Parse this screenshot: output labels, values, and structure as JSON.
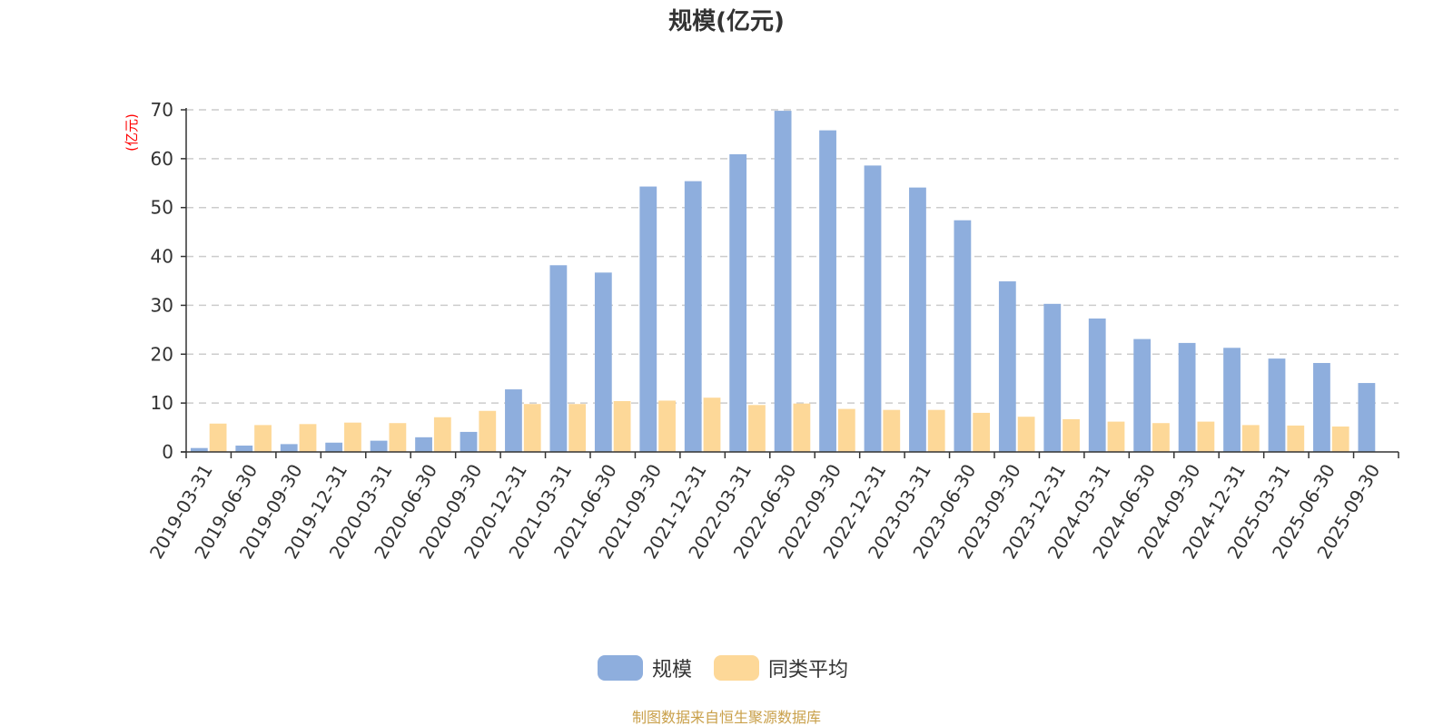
{
  "chart_data": {
    "type": "bar",
    "title": "规模(亿元)",
    "ylabel": "(亿元)",
    "ylim": [
      0,
      70
    ],
    "yticks": [
      0,
      10,
      20,
      30,
      40,
      50,
      60,
      70
    ],
    "grid": true,
    "legend_position": "bottom-center",
    "categories": [
      "2019-03-31",
      "2019-06-30",
      "2019-09-30",
      "2019-12-31",
      "2020-03-31",
      "2020-06-30",
      "2020-09-30",
      "2020-12-31",
      "2021-03-31",
      "2021-06-30",
      "2021-09-30",
      "2021-12-31",
      "2022-03-31",
      "2022-06-30",
      "2022-09-30",
      "2022-12-31",
      "2023-03-31",
      "2023-06-30",
      "2023-09-30",
      "2023-12-31",
      "2024-03-31",
      "2024-06-30",
      "2024-09-30",
      "2024-12-31",
      "2025-03-31",
      "2025-06-30",
      "2025-09-30"
    ],
    "series": [
      {
        "name": "规模",
        "color": "#8eaedd",
        "values": [
          0.8,
          1.3,
          1.6,
          1.9,
          2.3,
          3.0,
          4.1,
          12.8,
          38.2,
          36.7,
          54.3,
          55.4,
          60.9,
          69.8,
          65.8,
          58.6,
          54.1,
          47.4,
          34.9,
          30.3,
          27.3,
          23.1,
          22.3,
          21.3,
          19.1,
          18.2,
          14.1
        ]
      },
      {
        "name": "同类平均",
        "color": "#fdd898",
        "values": [
          5.8,
          5.5,
          5.7,
          6.0,
          5.9,
          7.1,
          8.4,
          9.8,
          9.8,
          10.4,
          10.5,
          11.1,
          9.6,
          9.9,
          8.8,
          8.6,
          8.6,
          8.0,
          7.2,
          6.7,
          6.2,
          5.9,
          6.2,
          5.5,
          5.4,
          5.2,
          null
        ]
      }
    ]
  },
  "colors": {
    "axis": "#333333",
    "grid": "#cccccc",
    "unit_label": "#ff0000",
    "source": "#c9a04a"
  },
  "footer": {
    "source_text": "制图数据来自恒生聚源数据库"
  }
}
